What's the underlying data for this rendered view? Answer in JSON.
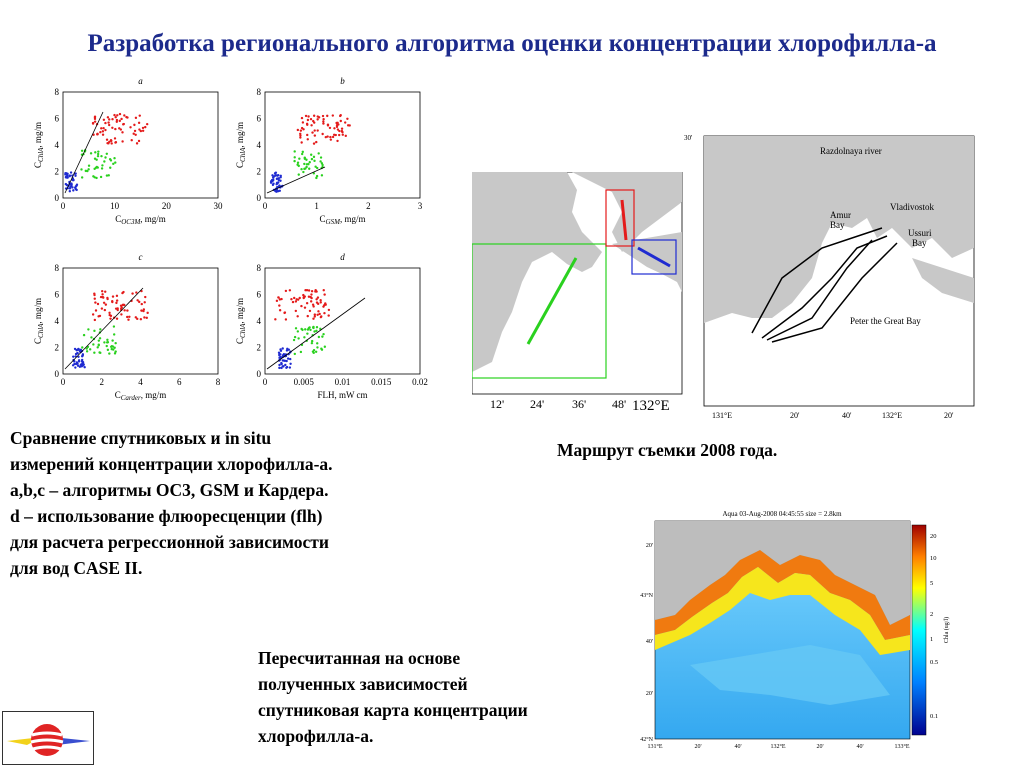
{
  "title": "Разработка регионального алгоритма оценки концентрации хлорофилла-а",
  "scatter_plots": {
    "panels": [
      {
        "letter": "a",
        "x_ticks": [
          "0",
          "10",
          "20",
          "30"
        ],
        "x_label": "C",
        "x_sub": "OC3M",
        "x_unit": ", mg/m",
        "y_ticks": [
          "0",
          "2",
          "4",
          "6",
          "8"
        ]
      },
      {
        "letter": "b",
        "x_ticks": [
          "0",
          "1",
          "2",
          "3"
        ],
        "x_label": "C",
        "x_sub": "GSM",
        "x_unit": ", mg/m",
        "y_ticks": [
          "0",
          "2",
          "4",
          "6",
          "8"
        ]
      },
      {
        "letter": "c",
        "x_ticks": [
          "0",
          "2",
          "4",
          "6",
          "8"
        ],
        "x_label": "C",
        "x_sub": "Carder",
        "x_unit": ", mg/m",
        "y_ticks": [
          "0",
          "2",
          "4",
          "6",
          "8"
        ]
      },
      {
        "letter": "d",
        "x_ticks": [
          "0",
          "0.005",
          "0.01",
          "0.015",
          "0.02"
        ],
        "x_label": "FLH, mW cm",
        "x_sub": "",
        "x_unit": "",
        "y_ticks": [
          "0",
          "2",
          "4",
          "6",
          "8"
        ]
      }
    ],
    "y_label": "C",
    "y_sub": "ChlA",
    "y_unit": ", mg/m"
  },
  "route_map": {
    "lon_labels": [
      "12'",
      "24'",
      "36'",
      "48'"
    ],
    "lon_main": "132°E"
  },
  "detail_map": {
    "labels": {
      "razdolnaya": "Razdolnaya river",
      "vladivostok": "Vladivostok",
      "amur": "Amur",
      "amur2": "Bay",
      "ussuri": "Ussuri",
      "ussuri2": "Bay",
      "peter": "Peter the Great Bay"
    },
    "lat_label": "30'",
    "lon_labels": [
      "131°E",
      "20'",
      "40'",
      "132°E",
      "20'"
    ]
  },
  "satellite_map": {
    "title": "Aqua 03-Aug-2008 04:45:55 size = 2.8km",
    "lat_labels": [
      "20'",
      "43°N",
      "40'",
      "20'",
      "42°N"
    ],
    "lon_labels": [
      "131°E",
      "20'",
      "40'",
      "132°E",
      "20'",
      "40'",
      "133°E"
    ],
    "colorbar_ticks": [
      "20",
      "10",
      "5",
      "2",
      "1",
      "0.5",
      "0.1"
    ],
    "colorbar_label": "Chla (ug/l)"
  },
  "captions": {
    "left": [
      "Сравнение спутниковых и in situ",
      "измерений концентрации хлорофилла-а.",
      "a,b,c – алгоритмы OC3, GSM и Кардера.",
      "d – использование флюоресценции (flh)",
      "для расчета регрессионной зависимости",
      "для вод CASE II."
    ],
    "route": "Маршрут съемки 2008 года.",
    "bottom": [
      "Пересчитанная на основе",
      "полученных зависимостей",
      "спутниковая карта концентрации",
      "хлорофилла-а."
    ]
  },
  "colors": {
    "title": "#1c2a8c",
    "red": "#e41b1b",
    "green": "#2ad11f",
    "blue": "#1f2bd1"
  }
}
